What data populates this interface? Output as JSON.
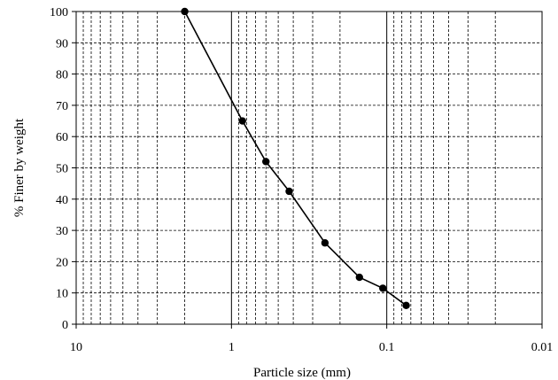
{
  "chart_data": {
    "type": "scatter",
    "title": "",
    "xlabel": "Particle size (mm)",
    "ylabel": "% Finer by weight",
    "x_scale": "log",
    "x_reversed": true,
    "xlim": [
      10,
      0.01
    ],
    "ylim": [
      0,
      100
    ],
    "x_ticks": [
      10,
      1,
      0.1,
      0.01
    ],
    "x_tick_labels": [
      "10",
      "1",
      "0.1",
      "0.01"
    ],
    "y_ticks": [
      0,
      10,
      20,
      30,
      40,
      50,
      60,
      70,
      80,
      90,
      100
    ],
    "y_tick_labels": [
      "0",
      "10",
      "20",
      "30",
      "40",
      "50",
      "60",
      "70",
      "80",
      "90",
      "100"
    ],
    "grid": true,
    "marker_color": "#000000",
    "line_color": "#000000",
    "series": [
      {
        "x": [
          2.0,
          0.85,
          0.6,
          0.425,
          0.25,
          0.15,
          0.106,
          0.075
        ],
        "y": [
          100,
          65,
          52,
          42.5,
          26,
          15,
          11.5,
          6
        ]
      }
    ]
  }
}
